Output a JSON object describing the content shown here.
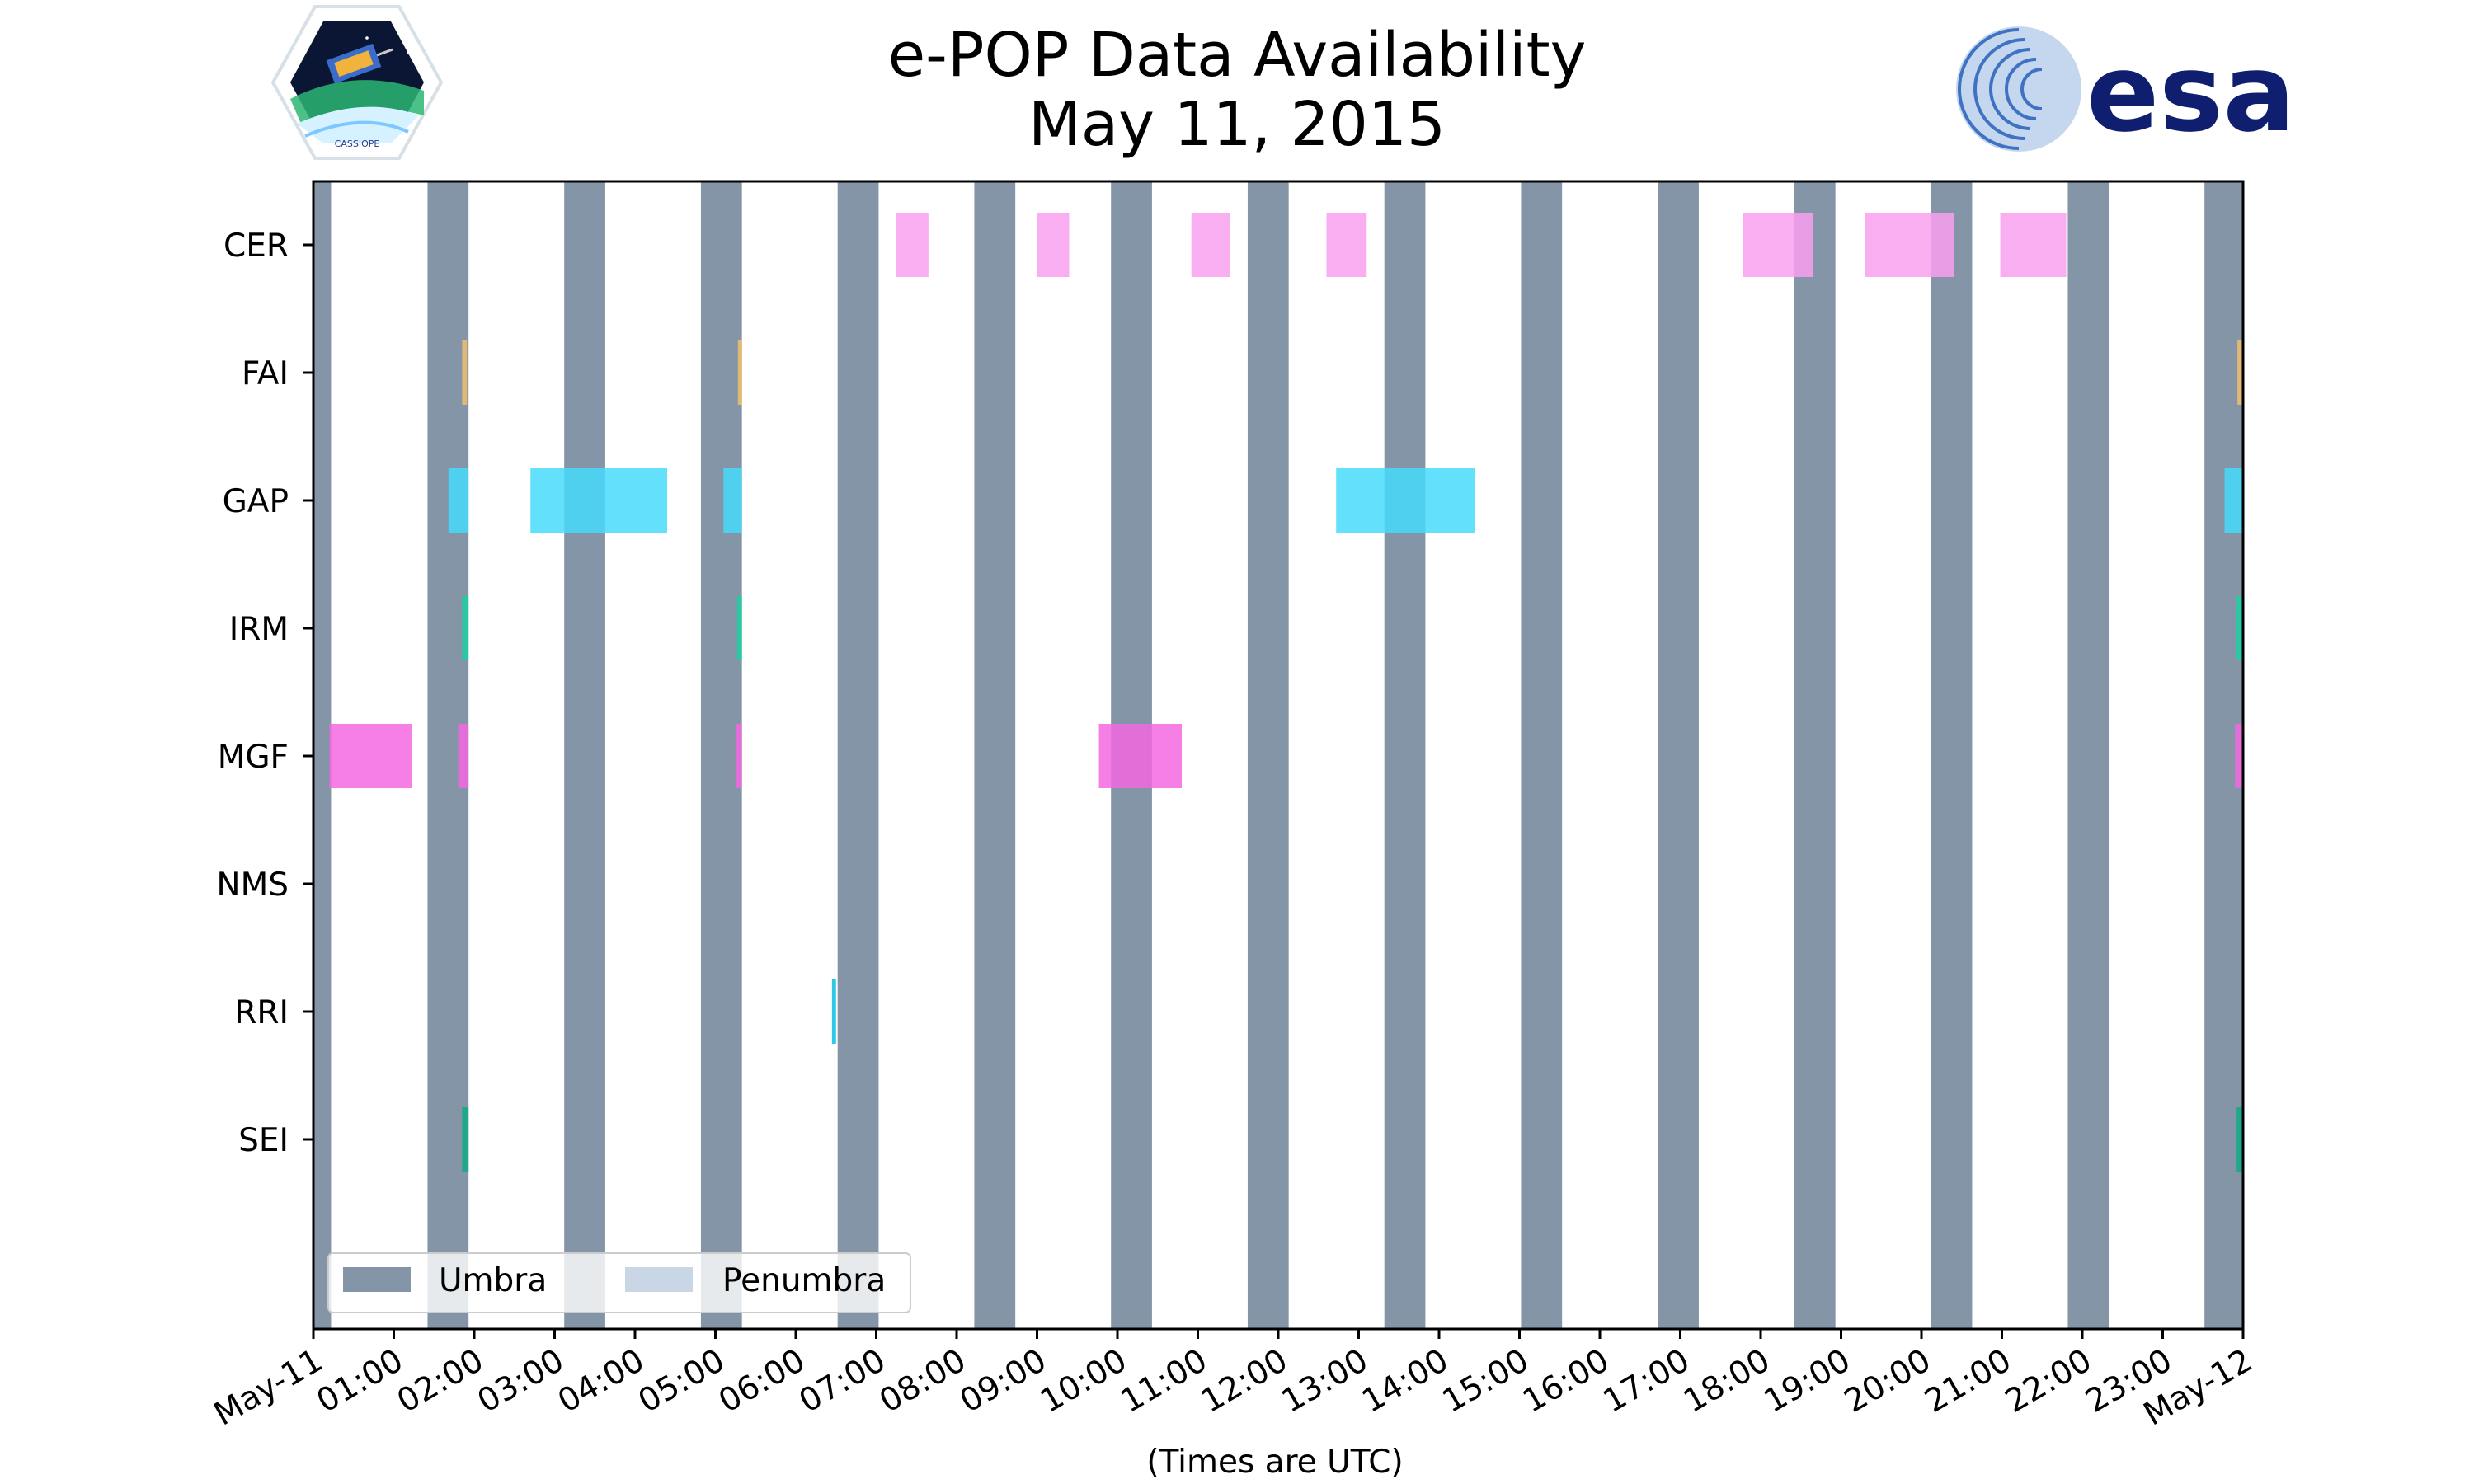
{
  "chart_data": {
    "type": "timeline",
    "title": [
      "e-POP Data Availability",
      "May 11, 2015"
    ],
    "xlabel": "(Times are UTC)",
    "x_range_hours": [
      0,
      24
    ],
    "x_ticks": [
      {
        "hour": 0,
        "label": "May-11"
      },
      {
        "hour": 1,
        "label": "01:00"
      },
      {
        "hour": 2,
        "label": "02:00"
      },
      {
        "hour": 3,
        "label": "03:00"
      },
      {
        "hour": 4,
        "label": "04:00"
      },
      {
        "hour": 5,
        "label": "05:00"
      },
      {
        "hour": 6,
        "label": "06:00"
      },
      {
        "hour": 7,
        "label": "07:00"
      },
      {
        "hour": 8,
        "label": "08:00"
      },
      {
        "hour": 9,
        "label": "09:00"
      },
      {
        "hour": 10,
        "label": "10:00"
      },
      {
        "hour": 11,
        "label": "11:00"
      },
      {
        "hour": 12,
        "label": "12:00"
      },
      {
        "hour": 13,
        "label": "13:00"
      },
      {
        "hour": 14,
        "label": "14:00"
      },
      {
        "hour": 15,
        "label": "15:00"
      },
      {
        "hour": 16,
        "label": "16:00"
      },
      {
        "hour": 17,
        "label": "17:00"
      },
      {
        "hour": 18,
        "label": "18:00"
      },
      {
        "hour": 19,
        "label": "19:00"
      },
      {
        "hour": 20,
        "label": "20:00"
      },
      {
        "hour": 21,
        "label": "21:00"
      },
      {
        "hour": 22,
        "label": "22:00"
      },
      {
        "hour": 23,
        "label": "23:00"
      },
      {
        "hour": 24,
        "label": "May-12"
      }
    ],
    "instruments": [
      "CER",
      "FAI",
      "GAP",
      "IRM",
      "MGF",
      "NMS",
      "RRI",
      "SEI"
    ],
    "umbra_color": "#8395a7",
    "penumbra_color": "#c8d6e5",
    "umbra_intervals": [
      [
        0.0,
        0.22
      ],
      [
        1.42,
        1.93
      ],
      [
        3.12,
        3.63
      ],
      [
        4.82,
        5.33
      ],
      [
        6.52,
        7.03
      ],
      [
        8.22,
        8.73
      ],
      [
        9.92,
        10.43
      ],
      [
        11.62,
        12.13
      ],
      [
        13.32,
        13.83
      ],
      [
        15.02,
        15.53
      ],
      [
        16.72,
        17.23
      ],
      [
        18.42,
        18.93
      ],
      [
        20.12,
        20.63
      ],
      [
        21.82,
        22.33
      ],
      [
        23.52,
        24.0
      ]
    ],
    "series": [
      {
        "name": "CER",
        "color": "#f9a0f0",
        "intervals": [
          [
            7.25,
            7.65
          ],
          [
            9.0,
            9.4
          ],
          [
            10.92,
            11.4
          ],
          [
            12.6,
            13.1
          ],
          [
            17.78,
            18.65
          ],
          [
            19.3,
            20.4
          ],
          [
            20.98,
            21.8
          ]
        ]
      },
      {
        "name": "FAI",
        "color": "#f3c06b",
        "intervals": [
          [
            1.85,
            1.91
          ],
          [
            5.28,
            5.33
          ],
          [
            23.93,
            24.0
          ]
        ]
      },
      {
        "name": "GAP",
        "color": "#48dbfb",
        "intervals": [
          [
            1.68,
            1.93
          ],
          [
            2.7,
            4.4
          ],
          [
            5.1,
            5.33
          ],
          [
            12.72,
            14.45
          ],
          [
            23.77,
            24.0
          ]
        ]
      },
      {
        "name": "IRM",
        "color": "#1dd1a1",
        "intervals": [
          [
            1.85,
            1.93
          ],
          [
            5.27,
            5.33
          ],
          [
            23.92,
            24.0
          ]
        ]
      },
      {
        "name": "MGF",
        "color": "#f368e0",
        "intervals": [
          [
            0.2,
            1.23
          ],
          [
            1.8,
            1.93
          ],
          [
            5.25,
            5.33
          ],
          [
            9.77,
            10.8
          ],
          [
            23.9,
            24.0
          ]
        ]
      },
      {
        "name": "NMS",
        "color": "#8395a7",
        "intervals": []
      },
      {
        "name": "RRI",
        "color": "#0abde3",
        "intervals": [
          [
            6.45,
            6.5
          ]
        ]
      },
      {
        "name": "SEI",
        "color": "#10ac84",
        "intervals": [
          [
            1.85,
            1.93
          ],
          [
            23.92,
            24.0
          ]
        ]
      }
    ],
    "legend": {
      "position": "lower-left",
      "entries": [
        {
          "label": "Umbra",
          "color": "#8395a7"
        },
        {
          "label": "Penumbra",
          "color": "#c8d6e5"
        }
      ]
    }
  },
  "logos": {
    "left": "CASSIOPE",
    "right": "esa"
  }
}
